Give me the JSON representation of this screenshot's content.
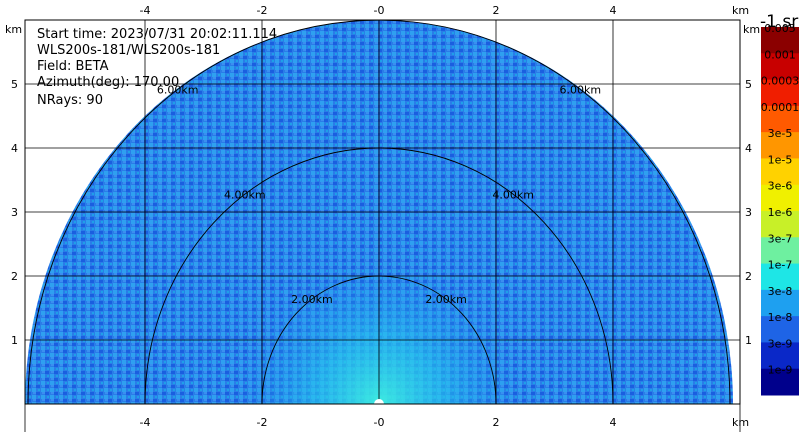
{
  "info": {
    "start_time": "Start time: 2023/07/31 20:02:11.114",
    "instrument": "WLS200s-181/WLS200s-181",
    "field": "Field: BETA",
    "azimuth": "Azimuth(deg): 170.00",
    "nrays": "NRays: 90"
  },
  "axes": {
    "unit": "km",
    "x_ticks": [
      "-4",
      "-2",
      "-0",
      "2",
      "4"
    ],
    "x_tick_values": [
      -4,
      -2,
      0,
      2,
      4
    ],
    "y_ticks": [
      "1",
      "2",
      "3",
      "4",
      "5"
    ],
    "y_tick_values": [
      1,
      2,
      3,
      4,
      5
    ]
  },
  "rings": [
    {
      "label": "2.00km",
      "radius_km": 2
    },
    {
      "label": "4.00km",
      "radius_km": 4
    },
    {
      "label": "6.00km",
      "radius_km": 6
    }
  ],
  "colorbar": {
    "title": "-1 sr",
    "entries": [
      {
        "label": "0.005",
        "color": "#8b0000"
      },
      {
        "label": "0.001",
        "color": "#c80000"
      },
      {
        "label": "0.0003",
        "color": "#f01e00"
      },
      {
        "label": "0.0001",
        "color": "#ff5a00"
      },
      {
        "label": "3e-5",
        "color": "#ff9600"
      },
      {
        "label": "1e-5",
        "color": "#ffd200"
      },
      {
        "label": "3e-6",
        "color": "#f0f000"
      },
      {
        "label": "1e-6",
        "color": "#c8f028"
      },
      {
        "label": "3e-7",
        "color": "#6ef0a0"
      },
      {
        "label": "1e-7",
        "color": "#1ee6e6"
      },
      {
        "label": "3e-8",
        "color": "#1ea0f0"
      },
      {
        "label": "1e-8",
        "color": "#1e64e6"
      },
      {
        "label": "3e-9",
        "color": "#0a28c8"
      },
      {
        "label": "1e-9",
        "color": "#00008c"
      }
    ]
  }
}
